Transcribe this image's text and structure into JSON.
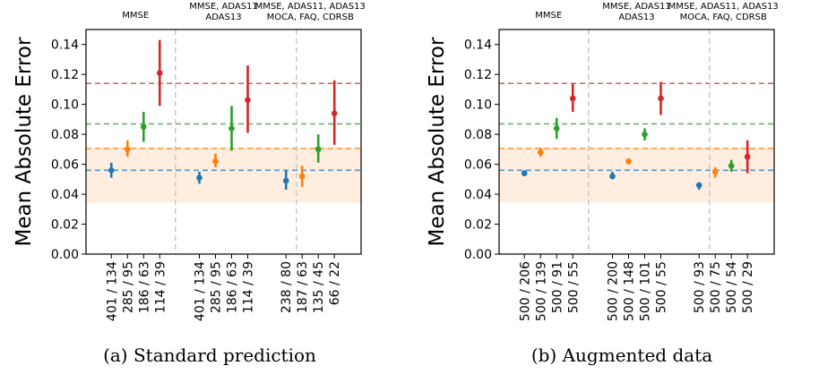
{
  "chart_data": [
    {
      "type": "scatter",
      "caption": "(a) Standard prediction",
      "ylabel": "Mean Absolute Error",
      "ylim": [
        0.0,
        0.15
      ],
      "yticks": [
        "0.00",
        "0.02",
        "0.04",
        "0.06",
        "0.08",
        "0.10",
        "0.12",
        "0.14"
      ],
      "grid": false,
      "groups": [
        {
          "header": [
            "MMSE"
          ],
          "points": [
            {
              "label": "401 / 134",
              "value": 0.056,
              "low": 0.051,
              "high": 0.061,
              "color": "#1f77b4"
            },
            {
              "label": "285 / 95",
              "value": 0.07,
              "low": 0.065,
              "high": 0.076,
              "color": "#ff7f0e"
            },
            {
              "label": "186 / 63",
              "value": 0.085,
              "low": 0.075,
              "high": 0.095,
              "color": "#2ca02c"
            },
            {
              "label": "114 / 39",
              "value": 0.121,
              "low": 0.099,
              "high": 0.143,
              "color": "#d62728"
            }
          ]
        },
        {
          "header": [
            "MMSE, ADAS11",
            "ADAS13"
          ],
          "points": [
            {
              "label": "401 / 134",
              "value": 0.051,
              "low": 0.047,
              "high": 0.055,
              "color": "#1f77b4"
            },
            {
              "label": "285 / 95",
              "value": 0.062,
              "low": 0.058,
              "high": 0.067,
              "color": "#ff7f0e"
            },
            {
              "label": "186 / 63",
              "value": 0.084,
              "low": 0.069,
              "high": 0.099,
              "color": "#2ca02c"
            },
            {
              "label": "114 / 39",
              "value": 0.103,
              "low": 0.081,
              "high": 0.126,
              "color": "#d62728"
            }
          ]
        },
        {
          "header": [
            "MMSE, ADAS11, ADAS13",
            "MOCA, FAQ, CDRSB"
          ],
          "points": [
            {
              "label": "238 / 80",
              "value": 0.049,
              "low": 0.043,
              "high": 0.056,
              "color": "#1f77b4"
            },
            {
              "label": "187 / 63",
              "value": 0.052,
              "low": 0.045,
              "high": 0.059,
              "color": "#ff7f0e"
            },
            {
              "label": "135 / 45",
              "value": 0.07,
              "low": 0.061,
              "high": 0.08,
              "color": "#2ca02c"
            },
            {
              "label": "66 / 22",
              "value": 0.094,
              "low": 0.073,
              "high": 0.116,
              "color": "#d62728"
            }
          ]
        }
      ],
      "reference_lines": [
        {
          "value": 0.114,
          "color": "#d62728"
        },
        {
          "value": 0.087,
          "color": "#2ca02c"
        },
        {
          "value": 0.0705,
          "color": "#ff7f0e"
        },
        {
          "value": 0.056,
          "color": "#1f77b4"
        }
      ],
      "band": {
        "low": 0.0345,
        "high": 0.0715,
        "color": "#ff7f0e"
      }
    },
    {
      "type": "scatter",
      "caption": "(b) Augmented data",
      "ylabel": "Mean Absolute Error",
      "ylim": [
        0.0,
        0.15
      ],
      "yticks": [
        "0.00",
        "0.02",
        "0.04",
        "0.06",
        "0.08",
        "0.10",
        "0.12",
        "0.14"
      ],
      "grid": false,
      "groups": [
        {
          "header": [
            "MMSE"
          ],
          "points": [
            {
              "label": "500 / 206",
              "value": 0.054,
              "low": 0.052,
              "high": 0.056,
              "color": "#1f77b4"
            },
            {
              "label": "500 / 139",
              "value": 0.068,
              "low": 0.065,
              "high": 0.071,
              "color": "#ff7f0e"
            },
            {
              "label": "500 / 91",
              "value": 0.084,
              "low": 0.077,
              "high": 0.091,
              "color": "#2ca02c"
            },
            {
              "label": "500 / 55",
              "value": 0.104,
              "low": 0.095,
              "high": 0.114,
              "color": "#d62728"
            }
          ]
        },
        {
          "header": [
            "MMSE, ADAS11",
            "ADAS13"
          ],
          "points": [
            {
              "label": "500 / 200",
              "value": 0.052,
              "low": 0.05,
              "high": 0.055,
              "color": "#1f77b4"
            },
            {
              "label": "500 / 148",
              "value": 0.062,
              "low": 0.06,
              "high": 0.064,
              "color": "#ff7f0e"
            },
            {
              "label": "500 / 101",
              "value": 0.08,
              "low": 0.076,
              "high": 0.084,
              "color": "#2ca02c"
            },
            {
              "label": "500 / 55",
              "value": 0.104,
              "low": 0.093,
              "high": 0.115,
              "color": "#d62728"
            }
          ]
        },
        {
          "header": [
            "MMSE, ADAS11, ADAS13",
            "MOCA, FAQ, CDRSB"
          ],
          "points": [
            {
              "label": "500 / 93",
              "value": 0.046,
              "low": 0.043,
              "high": 0.048,
              "color": "#1f77b4"
            },
            {
              "label": "500 / 75",
              "value": 0.055,
              "low": 0.051,
              "high": 0.058,
              "color": "#ff7f0e"
            },
            {
              "label": "500 / 54",
              "value": 0.059,
              "low": 0.055,
              "high": 0.063,
              "color": "#2ca02c"
            },
            {
              "label": "500 / 29",
              "value": 0.065,
              "low": 0.054,
              "high": 0.076,
              "color": "#d62728"
            }
          ]
        }
      ],
      "reference_lines": [
        {
          "value": 0.114,
          "color": "#d62728"
        },
        {
          "value": 0.087,
          "color": "#2ca02c"
        },
        {
          "value": 0.0705,
          "color": "#ff7f0e"
        },
        {
          "value": 0.056,
          "color": "#1f77b4"
        }
      ],
      "band": {
        "low": 0.0345,
        "high": 0.0715,
        "color": "#ff7f0e"
      }
    }
  ]
}
